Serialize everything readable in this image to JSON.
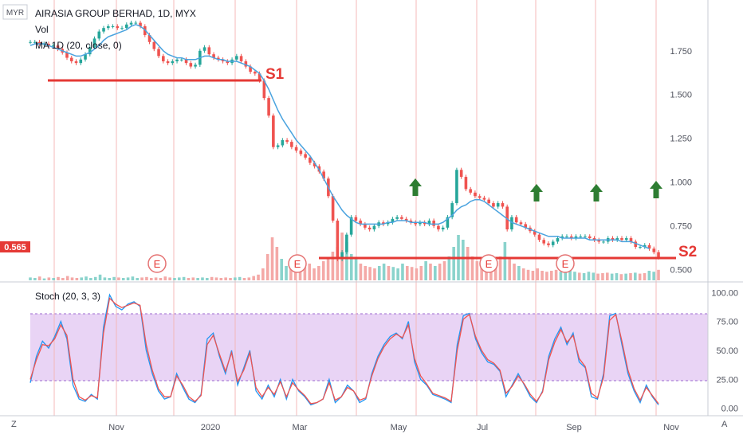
{
  "window": {
    "corner_left_label": "MYR",
    "corner_right_label": "Z",
    "corner_right_bottom": "A",
    "bottom_left_icon_label": "Z"
  },
  "chart_data": [
    {
      "type": "candlestick",
      "title": "AIRASIA GROUP BERHAD, 1D, MYX",
      "symbol": "AIRASIA GROUP BERHAD",
      "interval": "1D",
      "exchange": "MYX",
      "legend": [
        "Vol",
        "MA 1D (20, close, 0)"
      ],
      "currency": "MYR",
      "last_price": "0.565",
      "y_ticks": [
        "1.750",
        "1.500",
        "1.250",
        "1.000",
        "0.750",
        "0.500"
      ],
      "ylim": [
        0.43,
        2.04
      ],
      "x_ticks": [
        "Nov",
        "2020",
        "Mar",
        "May",
        "Jul",
        "Sep",
        "Nov"
      ],
      "x_range": [
        "2019-09-20",
        "2020-11-10"
      ],
      "earnings_markers": [
        "E",
        "E",
        "E",
        "E"
      ],
      "annotations": [
        {
          "label": "S1",
          "color": "#e53935",
          "kind": "support_line",
          "price": 1.62
        },
        {
          "label": "S2",
          "color": "#e53935",
          "kind": "support_line",
          "price": 0.5
        }
      ],
      "arrows": {
        "count": 4,
        "color": "#2e7d32",
        "direction": "up"
      },
      "close_series": [
        1.8,
        1.8,
        1.79,
        1.79,
        1.78,
        1.78,
        1.76,
        1.74,
        1.71,
        1.69,
        1.68,
        1.7,
        1.73,
        1.77,
        1.82,
        1.86,
        1.88,
        1.89,
        1.89,
        1.88,
        1.88,
        1.9,
        1.91,
        1.91,
        1.89,
        1.84,
        1.8,
        1.76,
        1.72,
        1.69,
        1.68,
        1.69,
        1.7,
        1.7,
        1.68,
        1.66,
        1.67,
        1.75,
        1.77,
        1.73,
        1.71,
        1.7,
        1.69,
        1.68,
        1.7,
        1.72,
        1.69,
        1.66,
        1.63,
        1.62,
        1.58,
        1.48,
        1.38,
        1.2,
        1.21,
        1.24,
        1.23,
        1.2,
        1.18,
        1.16,
        1.14,
        1.11,
        1.09,
        1.06,
        1.02,
        0.92,
        0.78,
        0.56,
        0.6,
        0.7,
        0.8,
        0.78,
        0.76,
        0.74,
        0.73,
        0.75,
        0.77,
        0.76,
        0.77,
        0.79,
        0.8,
        0.79,
        0.78,
        0.77,
        0.76,
        0.77,
        0.76,
        0.78,
        0.75,
        0.73,
        0.74,
        0.8,
        0.88,
        1.07,
        1.03,
        0.96,
        0.94,
        0.92,
        0.91,
        0.9,
        0.88,
        0.86,
        0.88,
        0.86,
        0.73,
        0.8,
        0.77,
        0.76,
        0.74,
        0.72,
        0.7,
        0.67,
        0.65,
        0.64,
        0.66,
        0.68,
        0.69,
        0.69,
        0.68,
        0.69,
        0.69,
        0.69,
        0.68,
        0.67,
        0.66,
        0.66,
        0.68,
        0.67,
        0.68,
        0.67,
        0.68,
        0.66,
        0.63,
        0.63,
        0.64,
        0.62,
        0.6,
        0.57
      ],
      "ma_series": [
        1.78,
        1.79,
        1.79,
        1.79,
        1.78,
        1.77,
        1.76,
        1.75,
        1.74,
        1.73,
        1.72,
        1.72,
        1.73,
        1.74,
        1.76,
        1.78,
        1.81,
        1.83,
        1.84,
        1.85,
        1.86,
        1.87,
        1.89,
        1.9,
        1.89,
        1.87,
        1.84,
        1.81,
        1.78,
        1.75,
        1.73,
        1.72,
        1.71,
        1.71,
        1.7,
        1.7,
        1.7,
        1.71,
        1.72,
        1.72,
        1.71,
        1.7,
        1.7,
        1.69,
        1.69,
        1.69,
        1.68,
        1.67,
        1.66,
        1.64,
        1.62,
        1.58,
        1.53,
        1.47,
        1.41,
        1.36,
        1.32,
        1.28,
        1.24,
        1.21,
        1.18,
        1.15,
        1.11,
        1.07,
        1.02,
        0.97,
        0.92,
        0.88,
        0.84,
        0.81,
        0.79,
        0.77,
        0.76,
        0.76,
        0.76,
        0.76,
        0.76,
        0.76,
        0.77,
        0.77,
        0.78,
        0.78,
        0.78,
        0.77,
        0.77,
        0.77,
        0.77,
        0.76,
        0.76,
        0.76,
        0.77,
        0.79,
        0.81,
        0.84,
        0.86,
        0.87,
        0.89,
        0.9,
        0.9,
        0.89,
        0.87,
        0.85,
        0.83,
        0.81,
        0.79,
        0.77,
        0.76,
        0.75,
        0.74,
        0.73,
        0.72,
        0.71,
        0.7,
        0.69,
        0.69,
        0.69,
        0.68,
        0.68,
        0.68,
        0.68,
        0.68,
        0.68,
        0.67,
        0.67,
        0.67,
        0.67,
        0.67,
        0.67,
        0.67,
        0.66,
        0.66,
        0.66,
        0.65,
        0.64,
        0.63,
        0.62
      ],
      "volume_series": [
        0.06,
        0.05,
        0.08,
        0.04,
        0.06,
        0.05,
        0.07,
        0.05,
        0.09,
        0.06,
        0.05,
        0.06,
        0.08,
        0.05,
        0.07,
        0.12,
        0.06,
        0.05,
        0.07,
        0.06,
        0.05,
        0.06,
        0.08,
        0.05,
        0.06,
        0.07,
        0.05,
        0.06,
        0.05,
        0.08,
        0.06,
        0.05,
        0.06,
        0.07,
        0.05,
        0.06,
        0.05,
        0.06,
        0.05,
        0.07,
        0.06,
        0.05,
        0.06,
        0.05,
        0.06,
        0.07,
        0.05,
        0.06,
        0.09,
        0.12,
        0.25,
        0.55,
        0.9,
        0.7,
        0.45,
        0.3,
        0.25,
        0.3,
        0.22,
        0.28,
        0.35,
        0.25,
        0.3,
        0.4,
        0.45,
        0.6,
        0.7,
        1.0,
        0.8,
        0.55,
        0.45,
        0.35,
        0.3,
        0.28,
        0.25,
        0.3,
        0.35,
        0.3,
        0.28,
        0.25,
        0.35,
        0.3,
        0.28,
        0.25,
        0.3,
        0.4,
        0.35,
        0.3,
        0.35,
        0.4,
        0.5,
        0.7,
        0.95,
        0.85,
        0.7,
        0.5,
        0.4,
        0.35,
        0.45,
        0.4,
        0.35,
        0.5,
        0.8,
        0.45,
        0.35,
        0.3,
        0.25,
        0.22,
        0.2,
        0.25,
        0.2,
        0.18,
        0.2,
        0.22,
        0.18,
        0.2,
        0.25,
        0.18,
        0.16,
        0.15,
        0.18,
        0.16,
        0.14,
        0.15,
        0.16,
        0.14,
        0.15,
        0.13,
        0.14,
        0.15,
        0.16,
        0.14,
        0.15,
        0.2,
        0.18,
        0.22
      ]
    },
    {
      "type": "line",
      "title": "Stoch (20, 3, 3)",
      "y_ticks": [
        "100.00",
        "75.00",
        "50.00",
        "25.00",
        "0.00"
      ],
      "ylim": [
        -5,
        105
      ],
      "band": [
        20,
        80
      ],
      "series": [
        {
          "name": "%K",
          "color": "#2196f3",
          "values": [
            22,
            45,
            58,
            52,
            62,
            75,
            60,
            20,
            8,
            6,
            12,
            8,
            70,
            98,
            88,
            85,
            90,
            92,
            88,
            50,
            30,
            15,
            8,
            10,
            30,
            18,
            8,
            5,
            12,
            60,
            65,
            45,
            30,
            50,
            20,
            35,
            50,
            15,
            8,
            20,
            10,
            25,
            8,
            25,
            15,
            10,
            3,
            5,
            8,
            25,
            5,
            10,
            20,
            15,
            5,
            8,
            30,
            45,
            55,
            62,
            65,
            60,
            75,
            40,
            25,
            20,
            12,
            10,
            8,
            5,
            55,
            80,
            82,
            60,
            48,
            40,
            38,
            32,
            10,
            20,
            30,
            20,
            10,
            5,
            15,
            45,
            60,
            70,
            55,
            65,
            40,
            35,
            10,
            8,
            30,
            80,
            82,
            55,
            30,
            15,
            5,
            20,
            10,
            3
          ]
        },
        {
          "name": "%D",
          "color": "#ef5350",
          "values": [
            25,
            42,
            55,
            54,
            60,
            72,
            63,
            25,
            10,
            7,
            11,
            9,
            65,
            95,
            90,
            87,
            89,
            91,
            89,
            55,
            33,
            17,
            10,
            10,
            28,
            20,
            10,
            6,
            11,
            55,
            63,
            47,
            32,
            48,
            23,
            33,
            48,
            18,
            10,
            18,
            12,
            23,
            10,
            22,
            16,
            11,
            4,
            5,
            8,
            22,
            7,
            10,
            18,
            15,
            7,
            9,
            28,
            43,
            53,
            60,
            64,
            61,
            72,
            43,
            28,
            21,
            13,
            11,
            9,
            6,
            50,
            77,
            81,
            62,
            50,
            42,
            39,
            33,
            13,
            19,
            28,
            21,
            12,
            6,
            14,
            42,
            57,
            68,
            57,
            63,
            43,
            36,
            13,
            9,
            27,
            76,
            81,
            58,
            33,
            17,
            7,
            18,
            11,
            4
          ]
        }
      ]
    }
  ]
}
